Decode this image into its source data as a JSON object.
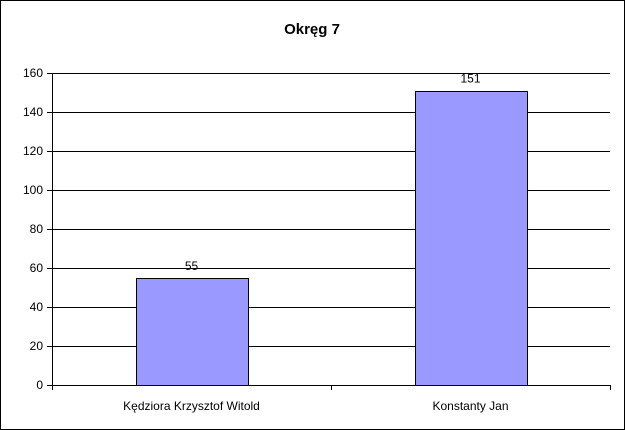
{
  "chart_data": {
    "type": "bar",
    "title": "Okręg 7",
    "xlabel": "",
    "ylabel": "",
    "categories": [
      "Kędziora Krzysztof Witold",
      "Konstanty Jan"
    ],
    "values": [
      55,
      151
    ],
    "data_labels": [
      "55",
      "151"
    ],
    "ylim": [
      0,
      160
    ],
    "yticks": [
      0,
      20,
      40,
      60,
      80,
      100,
      120,
      140,
      160
    ],
    "grid": true,
    "legend": "none",
    "bar_color": "#9999ff",
    "bar_border_color": "#000000",
    "background_color": "#ffffff"
  }
}
